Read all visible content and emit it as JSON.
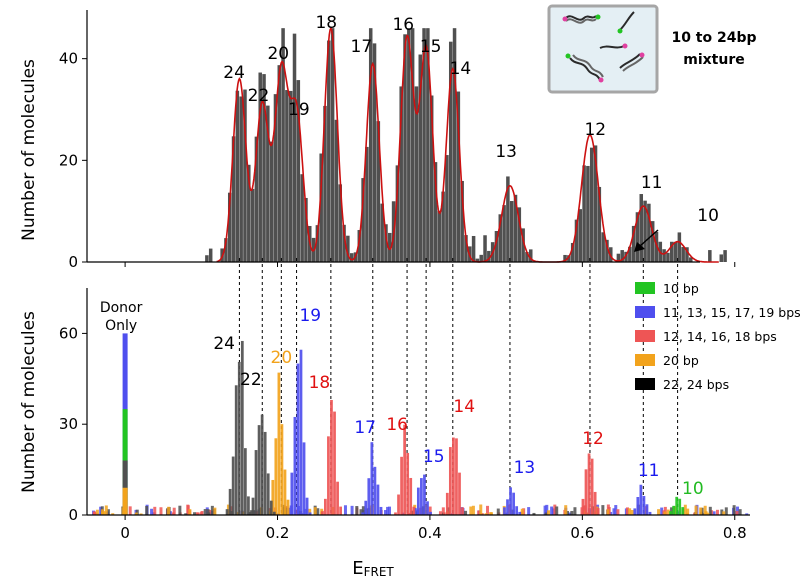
{
  "colors": {
    "gray": "#505050",
    "fit": "#cc1111",
    "green": "#22c422",
    "blue": "#4f4fee",
    "red": "#ee5555",
    "orange": "#f2a31c",
    "black": "#000000",
    "blueText": "#1a1aee",
    "redText": "#e01010",
    "orangeText": "#f2a31c",
    "greenText": "#22bb22"
  },
  "inset": {
    "line1": "10 to 24bp",
    "line2": "mixture"
  },
  "chart_data": [
    {
      "type": "bar",
      "ylabel": "Number of molecules",
      "xlim": [
        -0.05,
        0.82
      ],
      "ylim": [
        0,
        48
      ],
      "yticks": [
        0,
        20,
        40
      ],
      "overlay": "gaussian-fit",
      "peaks": [
        {
          "label": "24",
          "x": 0.15,
          "y": 36
        },
        {
          "label": "22",
          "x": 0.18,
          "y": 31
        },
        {
          "label": "20",
          "x": 0.205,
          "y": 37
        },
        {
          "label": "19",
          "x": 0.225,
          "y": 29
        },
        {
          "label": "18",
          "x": 0.27,
          "y": 46
        },
        {
          "label": "17",
          "x": 0.325,
          "y": 39
        },
        {
          "label": "16",
          "x": 0.37,
          "y": 44
        },
        {
          "label": "15",
          "x": 0.395,
          "y": 42
        },
        {
          "label": "14",
          "x": 0.43,
          "y": 38
        },
        {
          "label": "13",
          "x": 0.505,
          "y": 15
        },
        {
          "label": "12",
          "x": 0.61,
          "y": 25
        },
        {
          "label": "11",
          "x": 0.68,
          "y": 11
        },
        {
          "label": "10",
          "x": 0.725,
          "y": 4
        }
      ]
    },
    {
      "type": "bar",
      "xlabel": "E",
      "xlabel_sub": "FRET",
      "ylabel": "Number of molecules",
      "xlim": [
        -0.05,
        0.82
      ],
      "ylim": [
        0,
        75
      ],
      "xticks": [
        "0",
        "0.2",
        "0.4",
        "0.6",
        "0.8"
      ],
      "yticks": [
        0,
        30,
        60
      ],
      "legend_position": "top-right",
      "series": [
        {
          "name": "10 bp",
          "color": "green",
          "peaks": [
            {
              "label": "10",
              "x": 0.725,
              "y": 6
            }
          ]
        },
        {
          "name": "11, 13, 15, 17, 19 bps",
          "color": "blue",
          "peaks": [
            {
              "label": "19",
              "x": 0.228,
              "y": 66
            },
            {
              "label": "17",
              "x": 0.325,
              "y": 27
            },
            {
              "label": "15",
              "x": 0.39,
              "y": 16
            },
            {
              "label": "13",
              "x": 0.507,
              "y": 11
            },
            {
              "label": "11",
              "x": 0.678,
              "y": 10
            }
          ]
        },
        {
          "name": "12, 14, 16, 18 bps",
          "color": "red",
          "peaks": [
            {
              "label": "18",
              "x": 0.272,
              "y": 38
            },
            {
              "label": "16",
              "x": 0.368,
              "y": 30
            },
            {
              "label": "14",
              "x": 0.432,
              "y": 34
            },
            {
              "label": "12",
              "x": 0.61,
              "y": 23
            }
          ]
        },
        {
          "name": "20 bp",
          "color": "orange",
          "peaks": [
            {
              "label": "20",
              "x": 0.203,
              "y": 51
            }
          ]
        },
        {
          "name": "22, 24 bps",
          "color": "black",
          "peaks": [
            {
              "label": "24",
              "x": 0.15,
              "y": 64
            },
            {
              "label": "22",
              "x": 0.18,
              "y": 44
            }
          ]
        }
      ],
      "donor_only": {
        "label": "Donor Only",
        "x": 0.0,
        "blue": 60,
        "green": 35,
        "orange": 9,
        "black": 18
      }
    }
  ],
  "dashed_links": [
    0.15,
    0.18,
    0.205,
    0.225,
    0.27,
    0.325,
    0.37,
    0.395,
    0.43,
    0.505,
    0.61,
    0.68,
    0.725
  ]
}
